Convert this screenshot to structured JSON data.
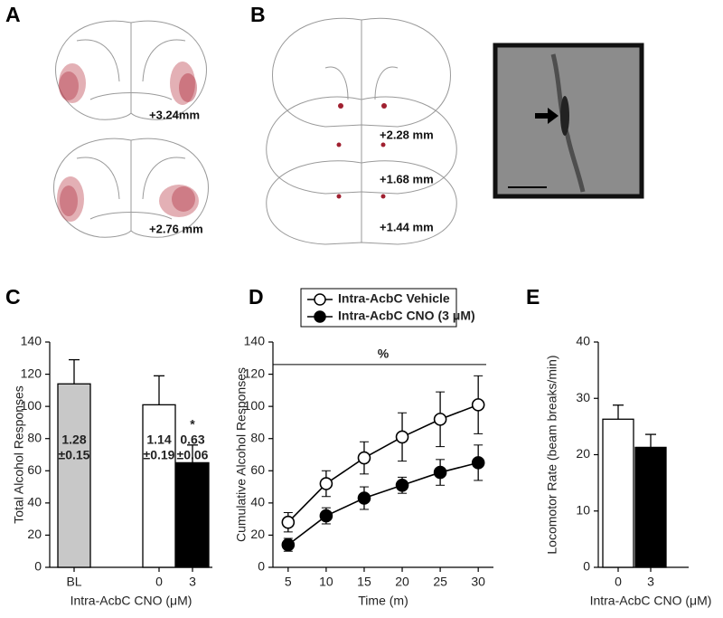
{
  "panels": [
    {
      "label": "A",
      "levels": [
        "+3.24mm",
        "+2.76 mm"
      ]
    },
    {
      "label": "B",
      "levels": [
        "+2.28 mm",
        "+1.68 mm",
        "+1.44 mm"
      ]
    }
  ],
  "chart_data": [
    {
      "type": "bar",
      "panel_label": "C",
      "categories": [
        "BL",
        "0",
        "3"
      ],
      "values": [
        114,
        101,
        65
      ],
      "errors": [
        15,
        18,
        11
      ],
      "colors": [
        "#c8c8c8",
        "#ffffff",
        "#000000"
      ],
      "bar_notes": [
        [
          "1.28",
          "±0.15"
        ],
        [
          "1.14",
          "±0.19"
        ],
        [
          "0.63",
          "±0.06"
        ]
      ],
      "stars": [
        null,
        null,
        "*"
      ],
      "ylim": [
        0,
        140
      ],
      "yticks": [
        0,
        20,
        40,
        60,
        80,
        100,
        120,
        140
      ],
      "ylabel": "Total Alcohol Responses",
      "xlabel": "Intra-AcbC CNO (μM)"
    },
    {
      "type": "line",
      "panel_label": "D",
      "x": [
        5,
        10,
        15,
        20,
        25,
        30
      ],
      "series": [
        {
          "name": "Intra-AcbC Vehicle",
          "color": "#ffffff",
          "values": [
            28,
            52,
            68,
            81,
            92,
            101
          ],
          "errors": [
            6,
            8,
            10,
            15,
            17,
            18
          ]
        },
        {
          "name": "Intra-AcbC CNO (3 μM)",
          "color": "#000000",
          "values": [
            14,
            32,
            43,
            51,
            59,
            65
          ],
          "errors": [
            4,
            5,
            7,
            5,
            8,
            11
          ]
        }
      ],
      "annotation": {
        "text": "%",
        "y": 126
      },
      "xlim": [
        3,
        32
      ],
      "xticks": [
        5,
        10,
        15,
        20,
        25,
        30
      ],
      "ylim": [
        0,
        140
      ],
      "yticks": [
        0,
        20,
        40,
        60,
        80,
        100,
        120,
        140
      ],
      "ylabel": "Cumulative Alcohol Responses",
      "xlabel": "Time (m)"
    },
    {
      "type": "bar",
      "panel_label": "E",
      "categories": [
        "0",
        "3"
      ],
      "values": [
        26.3,
        21.3
      ],
      "errors": [
        2.5,
        2.3
      ],
      "colors": [
        "#ffffff",
        "#000000"
      ],
      "ylim": [
        0,
        40
      ],
      "yticks": [
        0,
        10,
        20,
        30,
        40
      ],
      "ylabel": "Locomotor Rate (beam breaks/min)",
      "xlabel": "Intra-AcbC CNO (μM)"
    }
  ]
}
